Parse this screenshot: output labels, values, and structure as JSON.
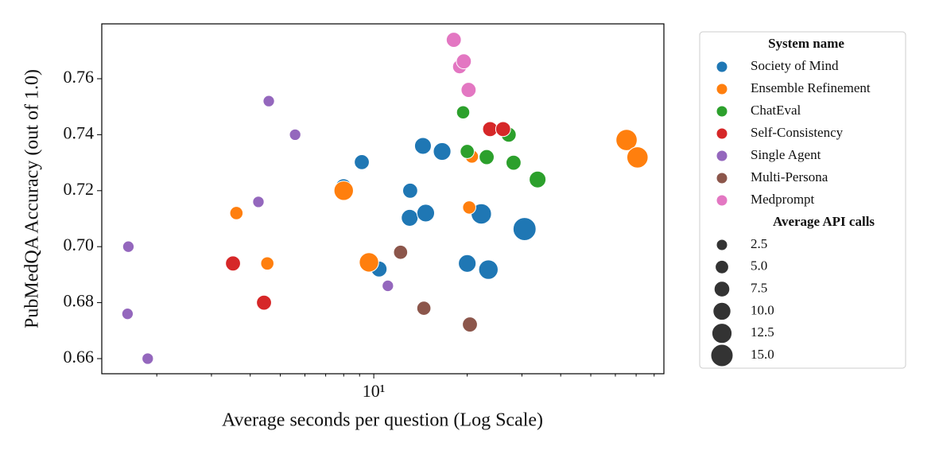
{
  "chart_data": {
    "type": "scatter",
    "x_label": "Average seconds per question (Log Scale)",
    "y_label": "PubMedQA Accuracy (out of 1.0)",
    "x_log": true,
    "xlim": [
      1.33,
      86
    ],
    "ylim": [
      0.6546,
      0.7796
    ],
    "xticks": [
      {
        "value": 10,
        "label": "10¹"
      }
    ],
    "xminor_ticks": [
      2,
      3,
      4,
      5,
      6,
      7,
      8,
      9,
      20,
      30,
      40,
      50,
      60,
      70,
      80
    ],
    "yticks": [
      0.66,
      0.68,
      {
        "value": 0.7,
        "label": "0.70"
      },
      0.72,
      0.74,
      0.76
    ],
    "grid": false,
    "legend_position": "outside-right",
    "legend_title": "System name",
    "size_legend_title": "Average API calls",
    "size_legend": [
      2.5,
      {
        "value": 5,
        "label": "5.0"
      },
      {
        "value": 7.5,
        "label": "7.5"
      },
      {
        "value": 10,
        "label": "10.0"
      },
      {
        "value": 12.5,
        "label": "12.5"
      },
      {
        "value": 15,
        "label": "15.0"
      }
    ],
    "series": [
      {
        "name": "Society of Mind",
        "color": "#1f77b4",
        "x": [
          7.99,
          9.15,
          13.1,
          14.4,
          16.6,
          13.05,
          14.7,
          10.4,
          20.0,
          23.4,
          22.2,
          30.6
        ],
        "values": [
          0.7214,
          0.7302,
          0.72,
          0.736,
          0.734,
          0.7103,
          0.712,
          0.692,
          0.694,
          0.6918,
          0.7117,
          0.7063
        ],
        "sizes": [
          6,
          5,
          5,
          7,
          8,
          7,
          8,
          6,
          8,
          10,
          11,
          14
        ]
      },
      {
        "name": "Ensemble Refinement",
        "color": "#ff7f0e",
        "x": [
          8.0,
          3.61,
          4.54,
          9.65,
          20.7,
          20.3,
          65.2,
          70.7
        ],
        "values": [
          0.72,
          0.712,
          0.694,
          0.6944,
          0.7322,
          0.714,
          0.7381,
          0.7319
        ],
        "sizes": [
          10,
          3,
          3,
          10,
          3,
          3,
          12,
          12
        ]
      },
      {
        "name": "ChatEval",
        "color": "#2ca02c",
        "x": [
          19.4,
          20.0,
          23.1,
          27.2,
          28.2,
          33.7
        ],
        "values": [
          0.748,
          0.734,
          0.732,
          0.74,
          0.73,
          0.724
        ],
        "sizes": [
          3,
          4,
          5,
          5,
          5,
          7
        ]
      },
      {
        "name": "Self-Consistency",
        "color": "#d62728",
        "x": [
          3.52,
          4.43,
          23.7,
          26.1
        ],
        "values": [
          0.694,
          0.68,
          0.742,
          0.742
        ],
        "sizes": [
          5,
          5,
          5,
          5
        ]
      },
      {
        "name": "Single Agent",
        "color": "#9467bd",
        "x": [
          4.59,
          5.58,
          4.25,
          1.62,
          1.61,
          1.87,
          11.1
        ],
        "values": [
          0.752,
          0.74,
          0.716,
          0.7,
          0.676,
          0.66,
          0.686
        ],
        "sizes": [
          1,
          1,
          1,
          1,
          1,
          1,
          1
        ]
      },
      {
        "name": "Multi-Persona",
        "color": "#8c564b",
        "x": [
          12.2,
          14.5,
          20.4
        ],
        "values": [
          0.698,
          0.678,
          0.6722
        ],
        "sizes": [
          4,
          4,
          5
        ]
      },
      {
        "name": "Medprompt",
        "color": "#e377c2",
        "x": [
          18.1,
          18.9,
          19.5,
          20.2
        ],
        "values": [
          0.7739,
          0.7643,
          0.7662,
          0.756
        ],
        "sizes": [
          5,
          4,
          5,
          5
        ]
      }
    ]
  }
}
